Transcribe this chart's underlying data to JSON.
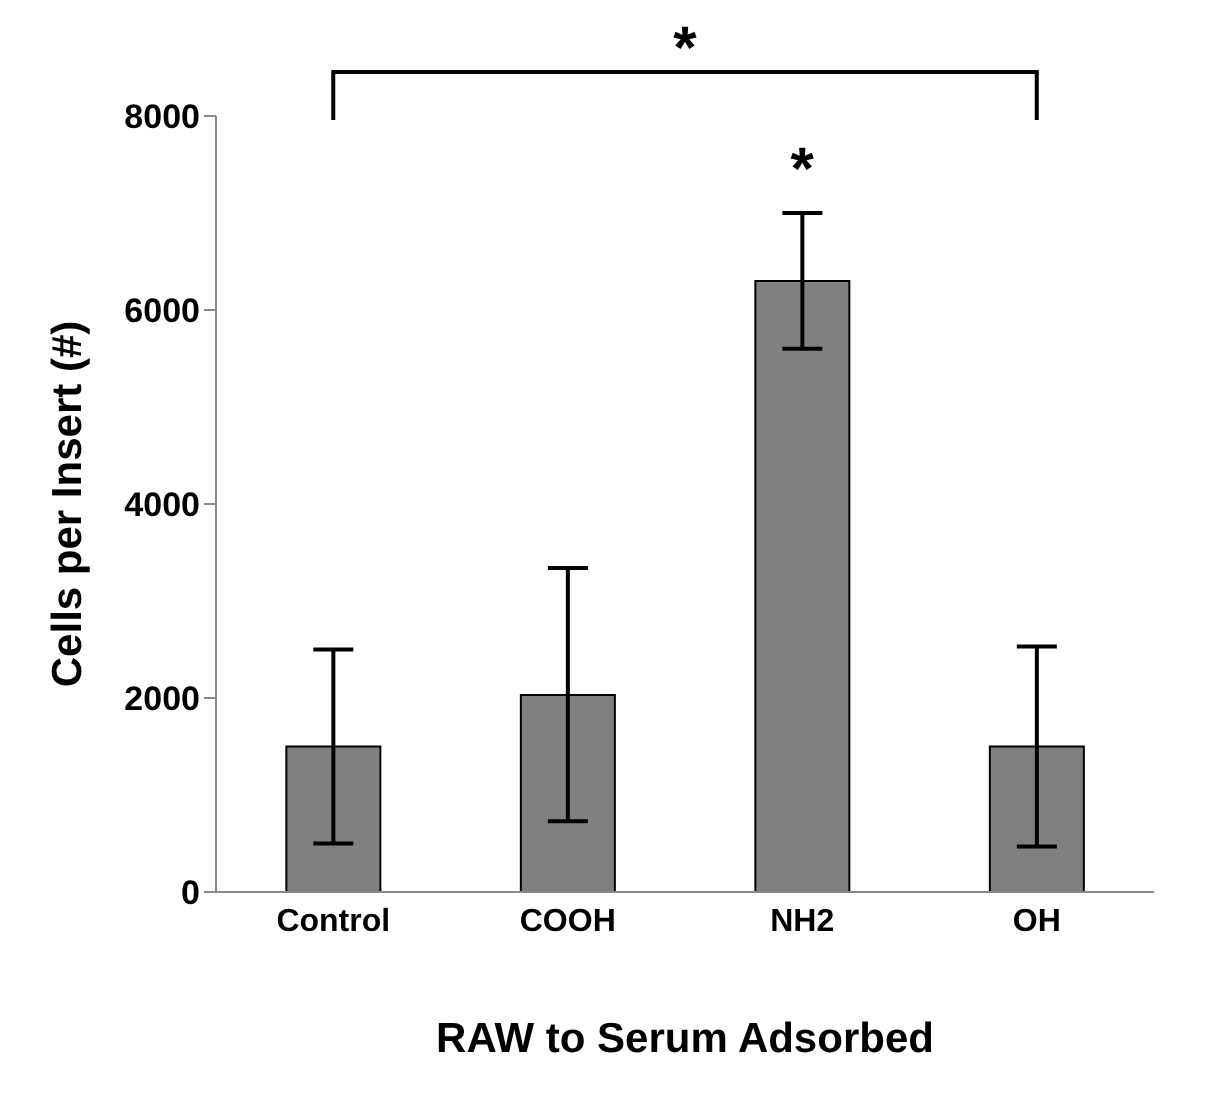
{
  "chart_data": {
    "type": "bar",
    "xlabel": "RAW to Serum Adsorbed",
    "ylabel": "Cells per Insert (#)",
    "categories": [
      "Control",
      "COOH",
      "NH2",
      "OH"
    ],
    "values": [
      1500,
      2030,
      6300,
      1500
    ],
    "errors": [
      1000,
      [
        730,
        3340
      ],
      700,
      [
        470,
        2530
      ]
    ],
    "color": "#808080",
    "ylim": [
      0,
      8000
    ],
    "yticks": [
      0,
      2000,
      4000,
      6000,
      8000
    ],
    "annotations": [
      "*",
      {
        "text": "*",
        "x": "NH2",
        "y": 7000
      }
    ]
  }
}
